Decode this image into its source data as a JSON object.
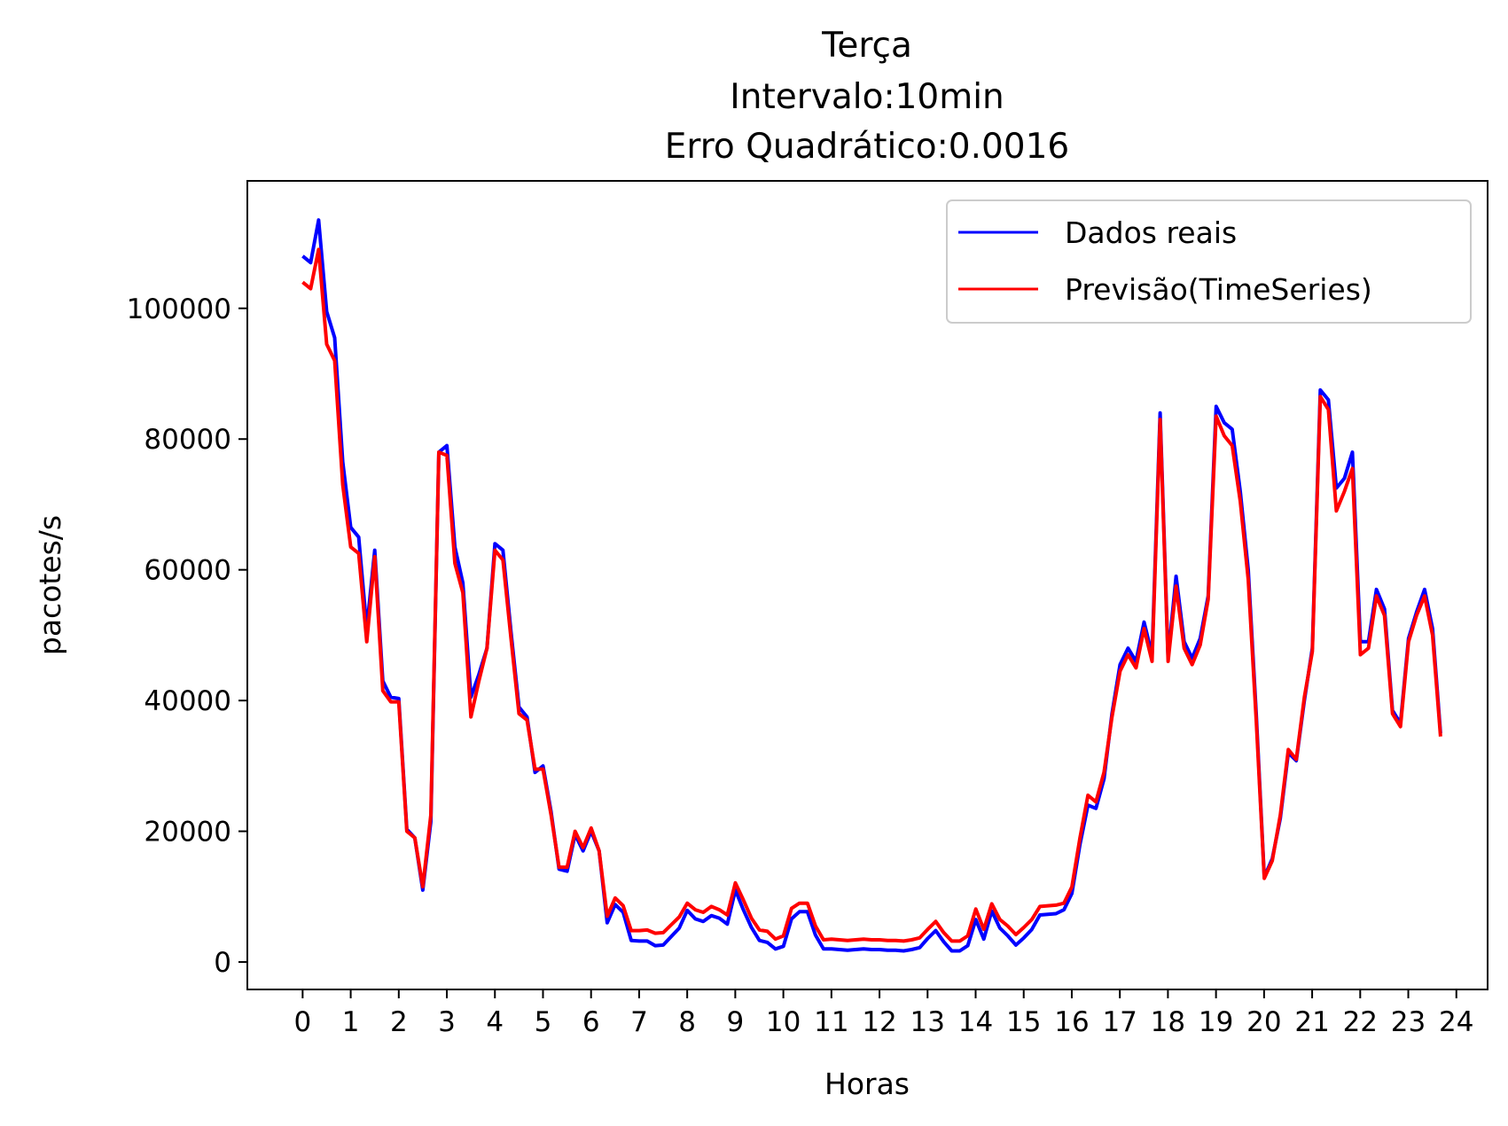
{
  "chart_data": {
    "type": "line",
    "title": [
      "Terça",
      "Intervalo:10min",
      "Erro Quadrático:0.0016"
    ],
    "xlabel": "Horas",
    "ylabel": "pacotes/s",
    "xlim": [
      -1.15,
      24.65
    ],
    "ylim": [
      -4200,
      119500
    ],
    "xticks": [
      0,
      1,
      2,
      3,
      4,
      5,
      6,
      7,
      8,
      9,
      10,
      11,
      12,
      13,
      14,
      15,
      16,
      17,
      18,
      19,
      20,
      21,
      22,
      23,
      24
    ],
    "yticks": [
      0,
      20000,
      40000,
      60000,
      80000,
      100000
    ],
    "grid": false,
    "legend_position": "top-right",
    "x_step_hours": 0.1667,
    "series": [
      {
        "name": "Dados reais",
        "color": "#0000ff",
        "values": [
          108000,
          107000,
          113500,
          99500,
          95500,
          76500,
          66500,
          65000,
          51000,
          63000,
          43000,
          40500,
          40300,
          20300,
          19000,
          11000,
          21500,
          78000,
          79000,
          63500,
          58000,
          40500,
          44000,
          48000,
          64000,
          63000,
          50500,
          39000,
          37500,
          29000,
          30000,
          23000,
          14200,
          13900,
          19500,
          17000,
          20000,
          17000,
          6000,
          8800,
          7600,
          3300,
          3200,
          3200,
          2500,
          2600,
          3900,
          5200,
          7900,
          6600,
          6200,
          7100,
          6700,
          5800,
          11000,
          8000,
          5300,
          3300,
          3000,
          2000,
          2400,
          6600,
          7700,
          7700,
          4100,
          2000,
          2000,
          1900,
          1800,
          1900,
          2000,
          1900,
          1900,
          1800,
          1800,
          1700,
          1900,
          2200,
          3600,
          4800,
          3100,
          1700,
          1700,
          2500,
          6500,
          3500,
          7800,
          5200,
          4000,
          2600,
          3700,
          5000,
          7200,
          7300,
          7400,
          8000,
          10500,
          18000,
          24000,
          23500,
          28000,
          38000,
          45500,
          48000,
          46000,
          52000,
          47000,
          84000,
          46500,
          59000,
          49000,
          46500,
          49500,
          56000,
          85000,
          82500,
          81500,
          72000,
          60000,
          38000,
          13000,
          15800,
          22000,
          32000,
          30800,
          40000,
          48000,
          87500,
          86000,
          72500,
          74000,
          78000,
          49000,
          49000,
          57000,
          54000,
          38500,
          36500,
          49500,
          53500,
          57000,
          51000,
          35000
        ]
      },
      {
        "name": "Previsão(TimeSeries)",
        "color": "#ff0000",
        "values": [
          104000,
          103000,
          109000,
          94500,
          92000,
          73000,
          63500,
          62500,
          49000,
          62000,
          41500,
          39800,
          39800,
          20000,
          19000,
          11500,
          22500,
          78000,
          77500,
          61000,
          56500,
          37500,
          43000,
          48000,
          63000,
          61500,
          49500,
          38000,
          37000,
          29500,
          29500,
          22500,
          14500,
          14500,
          20000,
          17500,
          20500,
          17000,
          7000,
          9800,
          8600,
          4800,
          4800,
          4900,
          4400,
          4500,
          5700,
          6900,
          9000,
          8000,
          7600,
          8500,
          8000,
          7200,
          12100,
          9500,
          6700,
          4900,
          4700,
          3500,
          4000,
          8200,
          9000,
          9000,
          5500,
          3400,
          3500,
          3400,
          3300,
          3400,
          3500,
          3400,
          3400,
          3300,
          3300,
          3200,
          3400,
          3700,
          5000,
          6200,
          4500,
          3200,
          3200,
          4000,
          8100,
          5000,
          8900,
          6500,
          5500,
          4200,
          5300,
          6500,
          8500,
          8600,
          8700,
          9000,
          11500,
          19000,
          25500,
          24500,
          29000,
          37500,
          44500,
          47000,
          45000,
          51000,
          46000,
          83000,
          46000,
          57500,
          48000,
          45500,
          48500,
          55500,
          83500,
          80500,
          79000,
          70500,
          58500,
          37000,
          12800,
          15500,
          22500,
          32500,
          31000,
          40500,
          47500,
          86500,
          84500,
          69000,
          72000,
          75500,
          47000,
          48000,
          56000,
          53000,
          38000,
          36000,
          49000,
          53000,
          56000,
          50000,
          34500
        ]
      }
    ]
  }
}
